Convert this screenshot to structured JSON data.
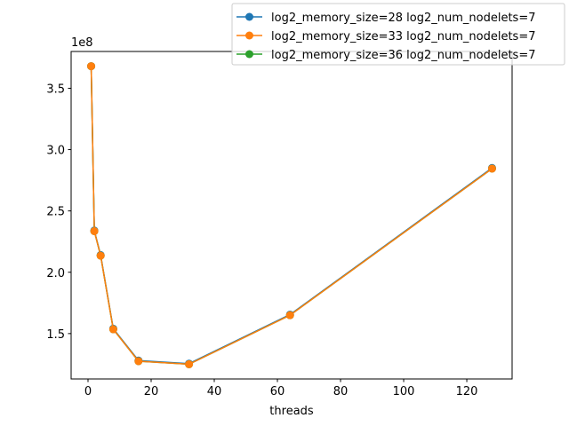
{
  "chart_data": {
    "type": "line",
    "title": "",
    "xlabel": "threads",
    "ylabel": "",
    "y_multiplier_label": "1e8",
    "xlim": [
      -5.35,
      134.35
    ],
    "ylim": [
      1.13,
      3.8
    ],
    "x_ticks": [
      0,
      20,
      40,
      60,
      80,
      100,
      120
    ],
    "y_ticks": [
      1.5,
      2.0,
      2.5,
      3.0,
      3.5
    ],
    "x_tick_labels": [
      "0",
      "20",
      "40",
      "60",
      "80",
      "100",
      "120"
    ],
    "y_tick_labels": [
      "1.5",
      "2.0",
      "2.5",
      "3.0",
      "3.5"
    ],
    "grid": false,
    "legend_position": "top-right",
    "x": [
      1,
      2,
      4,
      8,
      16,
      32,
      64,
      128
    ],
    "series": [
      {
        "name": "log2_memory_size=28 log2_num_nodelets=7",
        "color": "#1f77b4",
        "values": [
          3.68,
          2.34,
          2.14,
          1.54,
          1.28,
          1.255,
          1.655,
          2.85
        ]
      },
      {
        "name": "log2_memory_size=33 log2_num_nodelets=7",
        "color": "#ff7f0e",
        "values": [
          3.68,
          2.335,
          2.135,
          1.535,
          1.275,
          1.25,
          1.65,
          2.845
        ]
      },
      {
        "name": "log2_memory_size=36 log2_num_nodelets=7",
        "color": "#2ca02c",
        "values": [
          3.68,
          2.335,
          2.135,
          1.535,
          1.275,
          1.25,
          1.65,
          2.845
        ]
      }
    ],
    "draw_order": [
      0,
      2,
      1
    ]
  }
}
